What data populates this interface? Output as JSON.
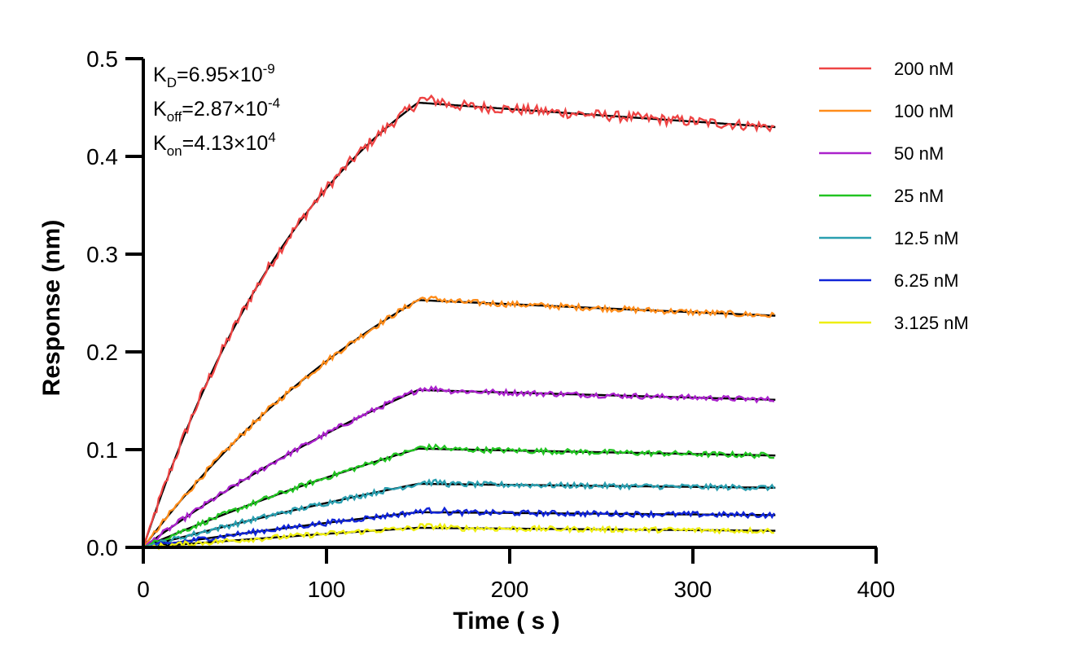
{
  "chart_data": {
    "type": "line",
    "title": "",
    "xlabel": "Time ( s )",
    "ylabel": "Response (nm)",
    "xlim": [
      0,
      400
    ],
    "ylim": [
      0,
      0.5
    ],
    "xticks": [
      0,
      100,
      200,
      300,
      400
    ],
    "yticks": [
      0,
      0.1,
      0.2,
      0.3,
      0.4,
      0.5
    ],
    "xtick_labels": [
      "0",
      "100",
      "200",
      "300",
      "400"
    ],
    "ytick_labels": [
      "0.0",
      "0.1",
      "0.2",
      "0.3",
      "0.4",
      "0.5"
    ],
    "grid": false,
    "legend_position": "top-right",
    "association_end": 150,
    "time_end": 345,
    "annotations": [
      {
        "main": "K",
        "sub": "D",
        "text": "=6.95×10",
        "sup": "-9"
      },
      {
        "main": "K",
        "sub": "off",
        "text": "=2.87×10",
        "sup": "-4"
      },
      {
        "main": "K",
        "sub": "on",
        "text": "=4.13×10",
        "sup": "4"
      }
    ],
    "series": [
      {
        "name": "200 nM",
        "color": "#ee4444",
        "plateau": 0.455,
        "end": 0.43,
        "k": 0.0095
      },
      {
        "name": "100 nM",
        "color": "#ff8c1a",
        "plateau": 0.253,
        "end": 0.237,
        "k": 0.0055
      },
      {
        "name": "50 nM",
        "color": "#aa22cc",
        "plateau": 0.161,
        "end": 0.151,
        "k": 0.0035
      },
      {
        "name": "25 nM",
        "color": "#22c422",
        "plateau": 0.101,
        "end": 0.094,
        "k": 0.0025
      },
      {
        "name": "12.5 nM",
        "color": "#2a9fb0",
        "plateau": 0.065,
        "end": 0.061,
        "k": 0.002
      },
      {
        "name": "6.25 nM",
        "color": "#1024d8",
        "plateau": 0.036,
        "end": 0.033,
        "k": 0.0018
      },
      {
        "name": "3.125 nM",
        "color": "#eeee10",
        "plateau": 0.02,
        "end": 0.017,
        "k": 0.0015
      }
    ]
  }
}
